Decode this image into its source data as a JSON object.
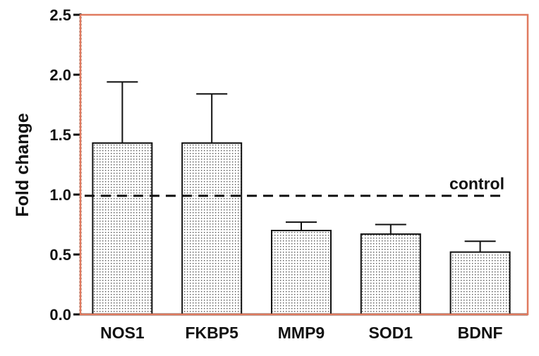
{
  "chart_data": {
    "type": "bar",
    "title": "",
    "xlabel": "",
    "ylabel": "Fold change",
    "ylim": [
      0,
      2.5
    ],
    "yticks": [
      0.0,
      0.5,
      1.0,
      1.5,
      2.0,
      2.5
    ],
    "ytick_labels": [
      "0.0",
      "0.5",
      "1.0",
      "1.5",
      "2.0",
      "2.5"
    ],
    "categories": [
      "NOS1",
      "FKBP5",
      "MMP9",
      "SOD1",
      "BDNF"
    ],
    "values": [
      1.43,
      1.43,
      0.7,
      0.67,
      0.52
    ],
    "error_upper": [
      0.51,
      0.41,
      0.07,
      0.08,
      0.09
    ],
    "reference_line": {
      "value": 0.99,
      "label": "control",
      "style": "dashed"
    },
    "grid": false,
    "bar_pattern": "dotted",
    "frame_color": "#e07a5f"
  }
}
